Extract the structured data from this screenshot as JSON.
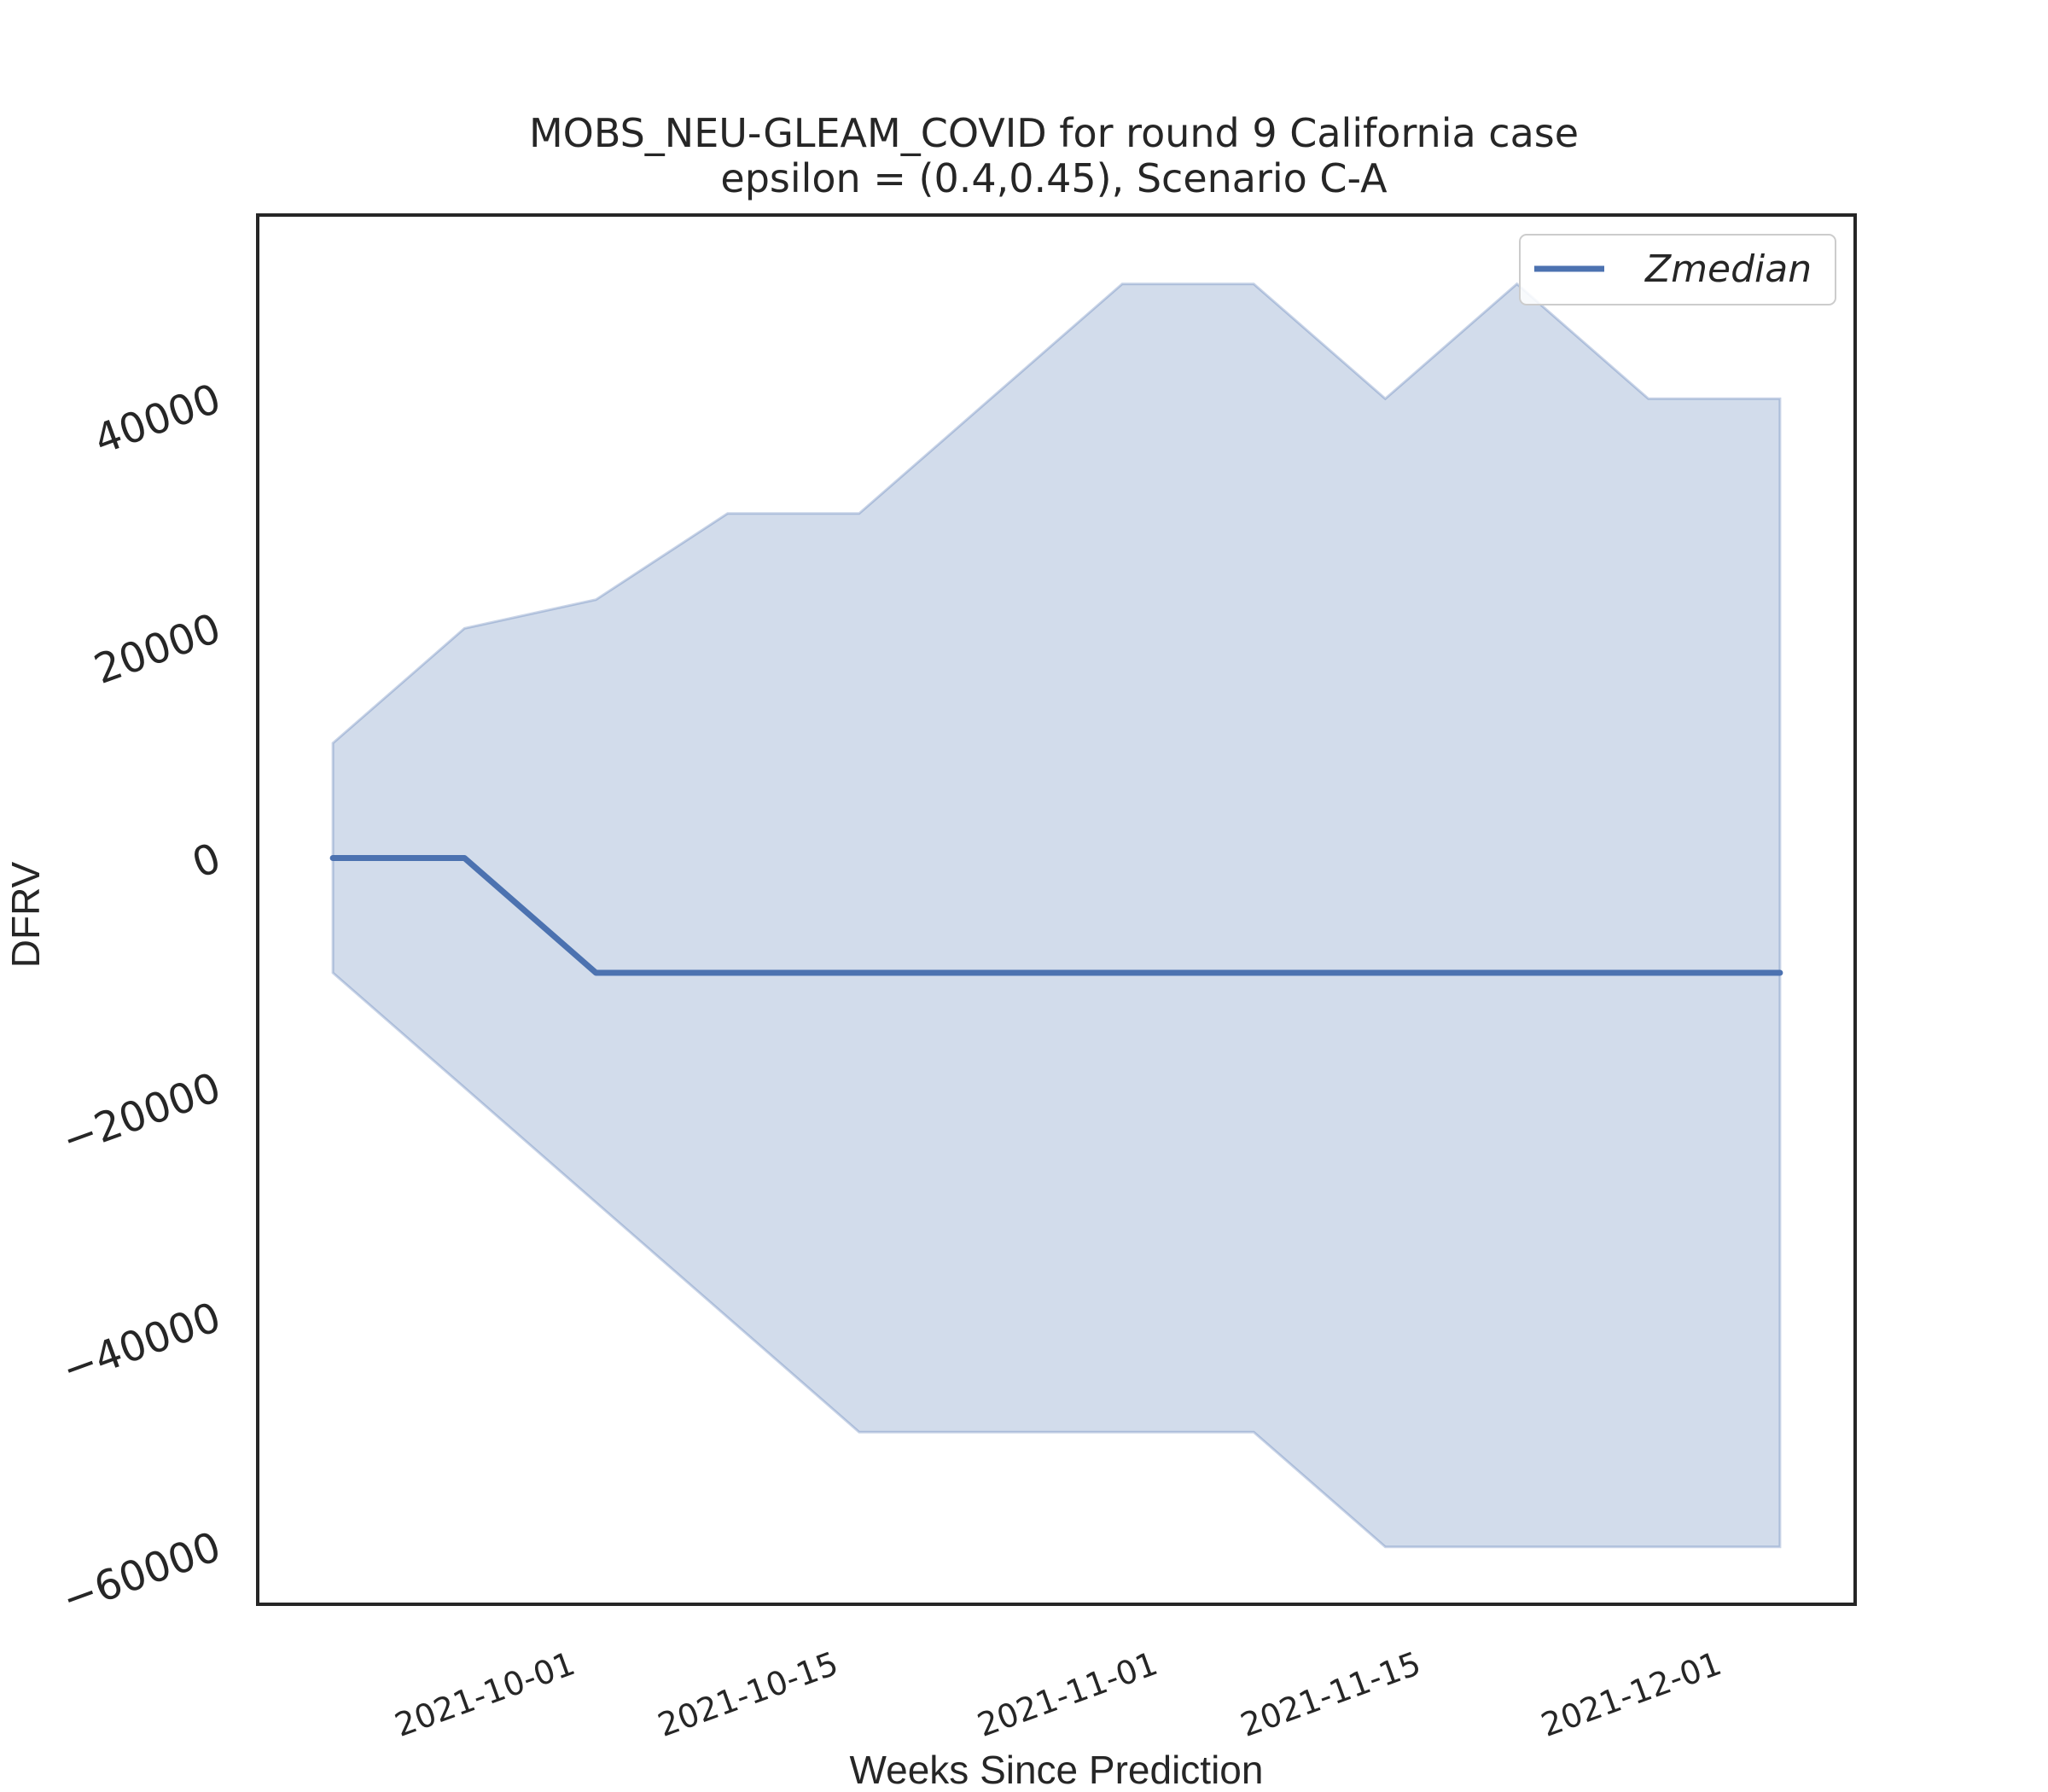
{
  "chart_data": {
    "type": "area",
    "title": "MOBS_NEU-GLEAM_COVID for round 9 California  case",
    "subtitle": "epsilon = (0.4,0.45), Scenario C-A",
    "xlabel": "Weeks Since Prediction",
    "ylabel": "DFRV",
    "x_scale": "date",
    "x": [
      "2021-09-18",
      "2021-09-25",
      "2021-10-02",
      "2021-10-09",
      "2021-10-16",
      "2021-10-23",
      "2021-10-30",
      "2021-11-06",
      "2021-11-13",
      "2021-11-20",
      "2021-11-27",
      "2021-12-04"
    ],
    "xlim": [
      "2021-09-14",
      "2021-12-08"
    ],
    "xticks": [
      "2021-10-01",
      "2021-10-15",
      "2021-11-01",
      "2021-11-15",
      "2021-12-01"
    ],
    "ylim": [
      -65000,
      56000
    ],
    "yticks": [
      -60000,
      -40000,
      -20000,
      0,
      20000,
      40000
    ],
    "ytick_labels": [
      "−60000",
      "−40000",
      "−20000",
      "0",
      "20000",
      "40000"
    ],
    "grid": false,
    "legend_position": "top-right",
    "series": [
      {
        "name": "Zmedian",
        "color": "#4c72b0",
        "values": [
          0,
          0,
          -10000,
          -10000,
          -10000,
          -10000,
          -10000,
          -10000,
          -10000,
          -10000,
          -10000,
          -10000
        ]
      }
    ],
    "band": {
      "color": "#4c72b0",
      "lower": [
        -10000,
        -20000,
        -30000,
        -40000,
        -50000,
        -50000,
        -50000,
        -50000,
        -60000,
        -60000,
        -60000,
        -60000
      ],
      "upper": [
        10000,
        20000,
        22500,
        30000,
        30000,
        40000,
        50000,
        50000,
        40000,
        50000,
        40000,
        40000
      ]
    }
  }
}
